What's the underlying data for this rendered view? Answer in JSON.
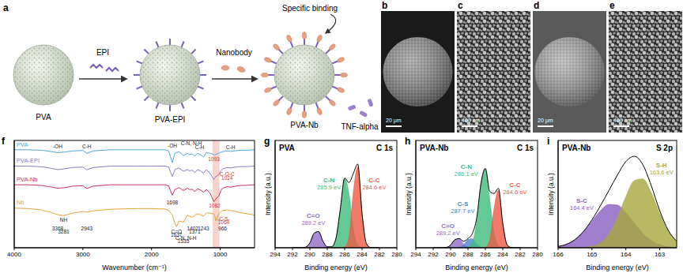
{
  "schematic": {
    "panel_label": "a",
    "steps": [
      "PVA",
      "PVA-EPI",
      "PVA-Nb"
    ],
    "reagents": [
      "EPI",
      "Nanobody"
    ],
    "annotation": "Specific binding",
    "target": "TNF-alpha"
  },
  "micrographs": [
    {
      "panel_label": "b",
      "scale_bar": "20 μm"
    },
    {
      "panel_label": "c",
      "scale_bar": "400 nm"
    },
    {
      "panel_label": "d",
      "scale_bar": "20 μm"
    },
    {
      "panel_label": "e",
      "scale_bar": "400 nm"
    }
  ],
  "chart_data": [
    {
      "panel_label": "f",
      "type": "line",
      "xlabel": "Wavenumber (cm⁻¹)",
      "xlim": [
        4000,
        500
      ],
      "xticks": [
        4000,
        3000,
        2000,
        1000
      ],
      "ylim": [
        -0.2,
        4.4
      ],
      "tick_labels": "x",
      "legend": "left",
      "highlight_range": [
        1110,
        1010
      ],
      "x": [
        4000,
        3800,
        3600,
        3450,
        3368,
        3281,
        3150,
        3000,
        2943,
        2850,
        2600,
        2400,
        2200,
        2000,
        1800,
        1750,
        1698,
        1660,
        1637,
        1600,
        1535,
        1480,
        1450,
        1402,
        1371,
        1330,
        1290,
        1243,
        1200,
        1150,
        1093,
        1082,
        1064,
        1024,
        990,
        966,
        900,
        850,
        800,
        700,
        600,
        500
      ],
      "series": [
        {
          "name": "PVA",
          "color": "#4da6d9",
          "values": [
            4.0,
            4.0,
            3.98,
            3.92,
            3.88,
            3.9,
            3.95,
            3.97,
            3.85,
            3.95,
            4.0,
            4.0,
            4.0,
            4.0,
            4.0,
            3.95,
            3.45,
            3.85,
            3.88,
            3.92,
            3.75,
            3.85,
            3.8,
            3.82,
            3.72,
            3.85,
            3.8,
            3.7,
            3.88,
            3.85,
            3.8,
            3.78,
            3.8,
            3.85,
            3.9,
            3.92,
            3.95,
            3.93,
            3.95,
            3.98,
            3.98,
            4.0
          ]
        },
        {
          "name": "PVA-EPI",
          "color": "#8c7dc8",
          "values": [
            3.3,
            3.3,
            3.27,
            3.2,
            3.15,
            3.18,
            3.24,
            3.26,
            3.14,
            3.24,
            3.3,
            3.3,
            3.3,
            3.3,
            3.3,
            3.25,
            2.85,
            3.15,
            3.18,
            3.22,
            3.08,
            3.15,
            3.1,
            3.12,
            3.02,
            3.15,
            3.1,
            3.0,
            3.15,
            3.0,
            2.72,
            2.78,
            2.85,
            2.92,
            3.1,
            3.18,
            3.24,
            3.22,
            3.25,
            3.28,
            3.28,
            3.3
          ]
        },
        {
          "name": "PVA-Nb",
          "color": "#c8325a",
          "values": [
            2.5,
            2.5,
            2.47,
            2.4,
            2.35,
            2.37,
            2.44,
            2.46,
            2.34,
            2.44,
            2.5,
            2.5,
            2.5,
            2.5,
            2.5,
            2.45,
            2.05,
            2.3,
            2.32,
            2.38,
            2.25,
            2.35,
            2.3,
            2.3,
            2.2,
            2.33,
            2.28,
            2.18,
            2.3,
            2.15,
            1.78,
            1.8,
            1.9,
            2.0,
            2.25,
            2.35,
            2.42,
            2.4,
            2.43,
            2.47,
            2.48,
            2.5
          ]
        },
        {
          "name": "Nb",
          "color": "#e3a33a",
          "values": [
            1.5,
            1.48,
            1.42,
            1.3,
            1.22,
            1.18,
            1.28,
            1.36,
            1.33,
            1.38,
            1.45,
            1.47,
            1.48,
            1.48,
            1.46,
            1.4,
            1.2,
            0.85,
            0.7,
            0.95,
            0.9,
            1.2,
            1.15,
            1.1,
            1.2,
            1.25,
            1.22,
            1.15,
            1.3,
            1.28,
            1.25,
            1.2,
            0.95,
            1.25,
            1.35,
            1.4,
            1.42,
            1.4,
            1.38,
            1.3,
            1.25,
            1.2
          ]
        }
      ],
      "annotations": [
        {
          "text": "-OH",
          "x": 3368,
          "y": 4.15
        },
        {
          "text": "C-H",
          "x": 2943,
          "y": 4.15
        },
        {
          "text": "-OH",
          "x": 1698,
          "y": 4.18
        },
        {
          "text": "C-N, N-H",
          "x": 1420,
          "y": 4.28
        },
        {
          "text": "C-H",
          "x": 1300,
          "y": 4.12
        },
        {
          "text": "C-H",
          "x": 850,
          "y": 4.12
        },
        {
          "text": "1093",
          "x": 1093,
          "y": 3.6,
          "color": "#d0342c"
        },
        {
          "text": "C-O-C",
          "x": 900,
          "y": 2.95,
          "color": "#d0342c"
        },
        {
          "text": "1024",
          "x": 900,
          "y": 2.8,
          "color": "#d0342c"
        },
        {
          "text": "1082",
          "x": 1082,
          "y": 1.6,
          "color": "#d0342c"
        },
        {
          "text": "-C-S-",
          "x": 950,
          "y": 1.05,
          "color": "#d0342c"
        },
        {
          "text": "1064",
          "x": 950,
          "y": 0.9,
          "color": "#d0342c"
        },
        {
          "text": "NH",
          "x": 3281,
          "y": 1.0
        },
        {
          "text": "3368",
          "x": 3368,
          "y": 0.62
        },
        {
          "text": "3281",
          "x": 3281,
          "y": 0.48
        },
        {
          "text": "2943",
          "x": 2943,
          "y": 0.62
        },
        {
          "text": "1698",
          "x": 1698,
          "y": 1.75
        },
        {
          "text": "C=O",
          "x": 1637,
          "y": 0.5
        },
        {
          "text": "1637",
          "x": 1637,
          "y": 0.37
        },
        {
          "text": "C-N, N-H",
          "x": 1500,
          "y": 0.22
        },
        {
          "text": "1535",
          "x": 1535,
          "y": 0.09
        },
        {
          "text": "1402",
          "x": 1402,
          "y": 0.62
        },
        {
          "text": "1371",
          "x": 1371,
          "y": 0.48
        },
        {
          "text": "1243",
          "x": 1243,
          "y": 0.62
        },
        {
          "text": "966",
          "x": 966,
          "y": 0.62
        }
      ]
    },
    {
      "panel_label": "g",
      "type": "line",
      "title": "PVA",
      "subtitle": "C 1s",
      "xlabel": "Binding energy (eV)",
      "ylabel": "Intensity (a.u.)",
      "xlim": [
        294,
        280
      ],
      "xticks": [
        294,
        292,
        290,
        288,
        286,
        284,
        282,
        280
      ],
      "ylim": [
        0,
        1.1
      ],
      "tick_labels": "x",
      "x": [
        292,
        291.5,
        291,
        290.5,
        290,
        289.5,
        289,
        288.5,
        288,
        287.5,
        287,
        286.5,
        286,
        285.5,
        285,
        284.5,
        284,
        283.5,
        283,
        282.5,
        282
      ],
      "series": [
        {
          "name": "C=O",
          "type": "area",
          "color": "#8e6cc6",
          "peak": 289.2,
          "peak_label": "289.2 eV",
          "values": [
            0,
            0,
            0,
            0.006,
            0.05,
            0.15,
            0.166,
            0.068,
            0.01,
            0,
            0,
            0,
            0,
            0,
            0,
            0,
            0,
            0,
            0,
            0,
            0
          ]
        },
        {
          "name": "C-N",
          "type": "area",
          "color": "#3dbb7a",
          "peak": 285.9,
          "peak_label": "285.9 eV",
          "values": [
            0,
            0,
            0,
            0,
            0,
            0,
            0,
            0,
            0,
            0.01,
            0.097,
            0.397,
            0.708,
            0.553,
            0.189,
            0.028,
            0.002,
            0,
            0,
            0,
            0
          ]
        },
        {
          "name": "C-C",
          "type": "area",
          "color": "#ee5a45",
          "peak": 284.6,
          "peak_label": "284.6 eV",
          "values": [
            0,
            0,
            0,
            0,
            0,
            0,
            0,
            0,
            0,
            0,
            0,
            0,
            0.007,
            0.115,
            0.573,
            0.83,
            0.349,
            0.043,
            0.002,
            0,
            0
          ]
        },
        {
          "type": "line",
          "color": "#000000",
          "line_style": "solid",
          "values": [
            0,
            0,
            0,
            0.006,
            0.05,
            0.15,
            0.166,
            0.068,
            0.01,
            0.01,
            0.097,
            0.397,
            0.715,
            0.668,
            0.762,
            0.858,
            0.351,
            0.043,
            0.002,
            0,
            0
          ]
        }
      ]
    },
    {
      "panel_label": "h",
      "type": "line",
      "title": "PVA-Nb",
      "subtitle": "C 1s",
      "xlabel": "Binding energy (eV)",
      "ylabel": "Intensity (a.u.)",
      "xlim": [
        294,
        280
      ],
      "xticks": [
        294,
        292,
        290,
        288,
        286,
        284,
        282,
        280
      ],
      "ylim": [
        0,
        1.1
      ],
      "tick_labels": "x",
      "x": [
        292,
        291.5,
        291,
        290.5,
        290,
        289.5,
        289,
        288.5,
        288,
        287.5,
        287,
        286.5,
        286,
        285.5,
        285,
        284.5,
        284,
        283.5,
        283,
        282.5,
        282
      ],
      "series": [
        {
          "name": "C=O",
          "type": "area",
          "color": "#8e6cc6",
          "peak": 289.2,
          "peak_label": "289.2 eV",
          "values": [
            0,
            0,
            0,
            0.003,
            0.028,
            0.083,
            0.092,
            0.038,
            0.006,
            0,
            0,
            0,
            0,
            0,
            0,
            0,
            0,
            0,
            0,
            0,
            0
          ]
        },
        {
          "name": "C-S",
          "type": "area",
          "color": "#4a86d6",
          "peak": 287.7,
          "peak_label": "287.7 eV",
          "values": [
            0,
            0,
            0,
            0,
            0,
            0,
            0.003,
            0.028,
            0.084,
            0.092,
            0.038,
            0.006,
            0,
            0,
            0,
            0,
            0,
            0,
            0,
            0,
            0
          ]
        },
        {
          "name": "C-N",
          "type": "area",
          "color": "#3dbb7a",
          "peak": 286.1,
          "peak_label": "286.1 eV",
          "values": [
            0,
            0,
            0,
            0,
            0,
            0,
            0,
            0,
            0.005,
            0.054,
            0.266,
            0.657,
            0.809,
            0.497,
            0.153,
            0.023,
            0.002,
            0,
            0,
            0,
            0
          ]
        },
        {
          "name": "C-C",
          "type": "area",
          "color": "#ee5a45",
          "peak": 284.6,
          "peak_label": "284.6 eV",
          "values": [
            0,
            0,
            0,
            0,
            0,
            0,
            0,
            0,
            0,
            0,
            0,
            0,
            0.005,
            0.081,
            0.404,
            0.586,
            0.247,
            0.03,
            0.001,
            0,
            0
          ]
        },
        {
          "type": "line",
          "color": "#000000",
          "line_style": "solid",
          "values": [
            0,
            0,
            0,
            0.003,
            0.028,
            0.083,
            0.095,
            0.066,
            0.095,
            0.146,
            0.304,
            0.663,
            0.814,
            0.578,
            0.557,
            0.609,
            0.249,
            0.03,
            0.001,
            0,
            0
          ]
        }
      ]
    },
    {
      "panel_label": "i",
      "type": "line",
      "title": "PVA-Nb",
      "subtitle": "S 2p",
      "xlabel": "Binding energy (eV)",
      "ylabel": "Intensity (a.u.)",
      "xlim": [
        166,
        162.5
      ],
      "xticks": [
        166,
        165,
        164,
        163
      ],
      "ylim": [
        0,
        1.1
      ],
      "tick_labels": "x",
      "x": [
        166,
        165.75,
        165.5,
        165.25,
        165,
        164.75,
        164.5,
        164.25,
        164,
        163.75,
        163.5,
        163.25,
        163,
        162.75,
        162.5
      ],
      "series": [
        {
          "name": "S-C",
          "type": "area",
          "color": "#8a5cc0",
          "peak": 164.4,
          "peak_label": "164.4 eV",
          "values": [
            0.013,
            0.036,
            0.084,
            0.165,
            0.273,
            0.38,
            0.444,
            0.436,
            0.36,
            0.25,
            0.146,
            0.072,
            0.03,
            0.01,
            0.003
          ]
        },
        {
          "name": "S-H",
          "type": "area",
          "color": "#a7a83c",
          "peak": 163.6,
          "peak_label": "163.6 eV",
          "values": [
            0,
            0,
            0,
            0.003,
            0.014,
            0.051,
            0.143,
            0.309,
            0.523,
            0.688,
            0.706,
            0.564,
            0.35,
            0.17,
            0.064
          ]
        },
        {
          "type": "line",
          "color": "#000000",
          "line_style": "solid",
          "values": [
            0.013,
            0.036,
            0.084,
            0.168,
            0.287,
            0.431,
            0.587,
            0.745,
            0.883,
            0.938,
            0.852,
            0.636,
            0.38,
            0.18,
            0.067
          ]
        }
      ]
    }
  ]
}
